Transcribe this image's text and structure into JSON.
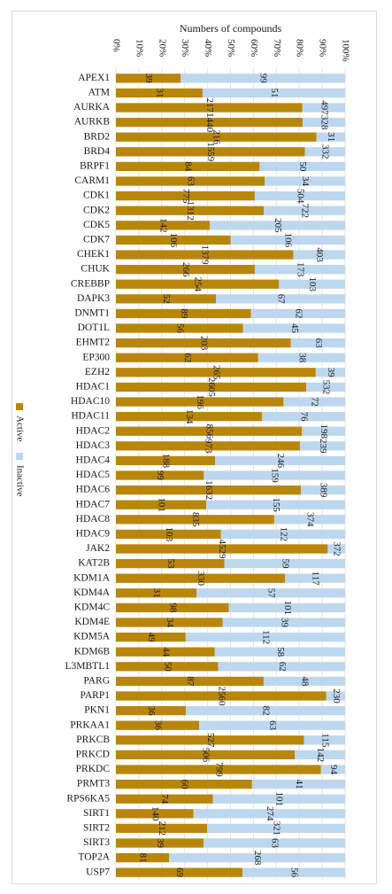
{
  "chart_data": {
    "type": "bar",
    "orientation": "horizontal",
    "stacked": "percent",
    "title": "Numbers of compounds",
    "x_ticks": [
      "0%",
      "10%",
      "20%",
      "30%",
      "40%",
      "50%",
      "60%",
      "70%",
      "80%",
      "90%",
      "100%"
    ],
    "xlim": [
      0,
      100
    ],
    "legend": {
      "position": "left",
      "entries": [
        "Active",
        "Inactive"
      ]
    },
    "colors": {
      "Active": "#b8860b",
      "Inactive": "#bdd7ee",
      "grid": "#e4e4e4"
    },
    "categories": [
      "APEX1",
      "ATM",
      "AURKA",
      "AURKB",
      "BRD2",
      "BRD4",
      "BRPF1",
      "CARM1",
      "CDK1",
      "CDK2",
      "CDK5",
      "CDK7",
      "CHEK1",
      "CHUK",
      "CREBBP",
      "DAPK3",
      "DNMT1",
      "DOT1L",
      "EHMT2",
      "EP300",
      "EZH2",
      "HDAC1",
      "HDAC10",
      "HDAC11",
      "HDAC2",
      "HDAC3",
      "HDAC4",
      "HDAC5",
      "HDAC6",
      "HDAC7",
      "HDAC8",
      "HDAC9",
      "JAK2",
      "KAT2B",
      "KDM1A",
      "KDM4A",
      "KDM4C",
      "KDM4E",
      "KDM5A",
      "KDM6B",
      "L3MBTL1",
      "PARG",
      "PARP1",
      "PKN1",
      "PRKAA1",
      "PRKCB",
      "PRKCD",
      "PRKDC",
      "PRMT3",
      "RPS6KA5",
      "SIRT1",
      "SIRT2",
      "SIRT3",
      "TOP2A",
      "USP7"
    ],
    "series": [
      {
        "name": "Active",
        "values": [
          39,
          31,
          2171,
          1440,
          216,
          1559,
          84,
          63,
          775,
          1312,
          142,
          106,
          1379,
          266,
          254,
          52,
          89,
          56,
          203,
          62,
          265,
          2605,
          196,
          134,
          856,
          973,
          188,
          99,
          1632,
          101,
          835,
          103,
          4529,
          53,
          330,
          31,
          98,
          34,
          49,
          44,
          50,
          87,
          2560,
          36,
          36,
          527,
          506,
          799,
          60,
          74,
          140,
          212,
          39,
          81,
          69
        ]
      },
      {
        "name": "Inactive",
        "values": [
          99,
          51,
          497,
          328,
          31,
          332,
          50,
          34,
          504,
          722,
          205,
          106,
          403,
          173,
          103,
          67,
          62,
          45,
          63,
          38,
          39,
          532,
          72,
          76,
          198,
          239,
          246,
          159,
          389,
          155,
          374,
          122,
          372,
          59,
          117,
          57,
          101,
          39,
          112,
          58,
          62,
          48,
          230,
          82,
          63,
          115,
          142,
          94,
          41,
          101,
          274,
          321,
          63,
          268,
          56
        ]
      }
    ]
  }
}
